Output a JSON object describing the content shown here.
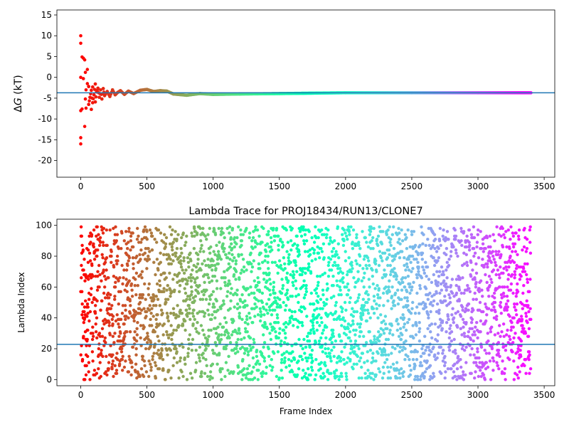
{
  "chart_data": [
    {
      "type": "scatter",
      "title": "",
      "xlabel": "",
      "ylabel": "ΔG (kT)",
      "ylabel_parts": {
        "delta": "Δ",
        "var": "G",
        "unit": " (kT)"
      },
      "xlim": [
        -180,
        3580
      ],
      "ylim": [
        -24,
        16.2
      ],
      "xticks": [
        0,
        500,
        1000,
        1500,
        2000,
        2500,
        3000,
        3500
      ],
      "yticks": [
        -20,
        -15,
        -10,
        -5,
        0,
        5,
        10,
        15
      ],
      "hline": -3.7,
      "colormap": "rainbow",
      "series": [
        {
          "description": "Running ΔG estimate per frame (x: frame index, y: ΔG in kT); colored by frame with rainbow colormap",
          "points": [
            [
              0,
              10.0
            ],
            [
              0,
              8.2
            ],
            [
              0,
              0.0
            ],
            [
              0,
              -8.0
            ],
            [
              0,
              -14.5
            ],
            [
              0,
              -16.0
            ],
            [
              10,
              4.9
            ],
            [
              10,
              -7.6
            ],
            [
              20,
              4.6
            ],
            [
              20,
              -0.3
            ],
            [
              30,
              4.2
            ],
            [
              30,
              -11.8
            ],
            [
              35,
              1.2
            ],
            [
              35,
              -5.2
            ],
            [
              40,
              -3.0
            ],
            [
              40,
              -7.4
            ],
            [
              50,
              1.9
            ],
            [
              50,
              -1.5
            ],
            [
              60,
              -2.2
            ],
            [
              60,
              -6.5
            ],
            [
              70,
              -4.8
            ],
            [
              80,
              -3.1
            ],
            [
              80,
              -7.7
            ],
            [
              90,
              -2.3
            ],
            [
              90,
              -6.1
            ],
            [
              100,
              -4.2
            ],
            [
              110,
              -1.6
            ],
            [
              110,
              -5.9
            ],
            [
              120,
              -3.5
            ],
            [
              130,
              -2.6
            ],
            [
              140,
              -4.8
            ],
            [
              150,
              -3.0
            ],
            [
              160,
              -5.2
            ],
            [
              170,
              -2.7
            ],
            [
              180,
              -4.4
            ],
            [
              200,
              -3.4
            ],
            [
              220,
              -4.6
            ],
            [
              240,
              -3.0
            ],
            [
              260,
              -4.2
            ],
            [
              280,
              -3.6
            ],
            [
              300,
              -3.2
            ],
            [
              330,
              -4.1
            ],
            [
              360,
              -3.3
            ],
            [
              400,
              -3.9
            ],
            [
              450,
              -3.1
            ],
            [
              500,
              -2.9
            ],
            [
              550,
              -3.4
            ],
            [
              600,
              -3.2
            ],
            [
              650,
              -3.3
            ],
            [
              700,
              -4.0
            ],
            [
              800,
              -4.3
            ],
            [
              900,
              -3.9
            ],
            [
              1000,
              -4.1
            ],
            [
              1200,
              -4.0
            ],
            [
              1500,
              -3.9
            ],
            [
              2000,
              -3.7
            ],
            [
              2500,
              -3.7
            ],
            [
              3000,
              -3.7
            ],
            [
              3400,
              -3.7
            ]
          ]
        }
      ]
    },
    {
      "type": "scatter",
      "title": "Lambda Trace for PROJ18434/RUN13/CLONE7",
      "xlabel": "Frame Index",
      "ylabel": "Lambda Index",
      "xlim": [
        -180,
        3580
      ],
      "ylim": [
        -4,
        104
      ],
      "xticks": [
        0,
        500,
        1000,
        1500,
        2000,
        2500,
        3000,
        3500
      ],
      "yticks": [
        0,
        20,
        40,
        60,
        80,
        100
      ],
      "hline": 22.8,
      "colormap": "rainbow",
      "series": [
        {
          "description": "Lambda index (0-99) sampled at each frame from 0 to about 3400, uniformly scattered, colored by frame with rainbow colormap",
          "x_range": [
            0,
            3400
          ],
          "y_range": [
            0,
            99
          ],
          "count": 3400
        }
      ]
    }
  ]
}
